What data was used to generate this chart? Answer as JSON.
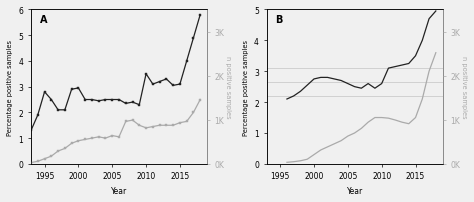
{
  "panel_A": {
    "label": "A",
    "years_black": [
      1993,
      1994,
      1995,
      1996,
      1997,
      1998,
      1999,
      2000,
      2001,
      2002,
      2003,
      2004,
      2005,
      2006,
      2007,
      2008,
      2009,
      2010,
      2011,
      2012,
      2013,
      2014,
      2015,
      2016,
      2017,
      2018
    ],
    "vals_black": [
      1.3,
      1.9,
      2.8,
      2.5,
      2.1,
      2.1,
      2.9,
      2.95,
      2.5,
      2.5,
      2.45,
      2.5,
      2.5,
      2.5,
      2.35,
      2.4,
      2.3,
      3.5,
      3.1,
      3.2,
      3.3,
      3.05,
      3.1,
      4.0,
      4.9,
      5.8
    ],
    "years_gray": [
      1993,
      1994,
      1995,
      1996,
      1997,
      1998,
      1999,
      2000,
      2001,
      2002,
      2003,
      2004,
      2005,
      2006,
      2007,
      2008,
      2009,
      2010,
      2011,
      2012,
      2013,
      2014,
      2015,
      2016,
      2017,
      2018
    ],
    "vals_gray_pct": [
      0.05,
      0.1,
      0.2,
      0.3,
      0.5,
      0.6,
      0.8,
      0.9,
      0.95,
      1.0,
      1.05,
      1.0,
      1.1,
      1.05,
      1.65,
      1.7,
      1.5,
      1.4,
      1.45,
      1.5,
      1.5,
      1.5,
      1.6,
      1.65,
      2.0,
      2.5
    ],
    "ylim_left": [
      0,
      6
    ],
    "ylim_right": [
      0,
      3500
    ],
    "yticks_left": [
      0,
      1,
      2,
      3,
      4,
      5,
      6
    ],
    "yticks_right": [
      0,
      1000,
      2000,
      3000
    ],
    "yticklabels_right": [
      "0K",
      "1K",
      "2K",
      "3K"
    ],
    "xlabel": "Year",
    "ylabel_left": "Percentage positive samples",
    "ylabel_right": "n positive samples",
    "hlines": [],
    "xlim": [
      1993,
      2019
    ],
    "xticks": [
      1995,
      2000,
      2005,
      2010,
      2015
    ]
  },
  "panel_B": {
    "label": "B",
    "years_black": [
      1996,
      1997,
      1998,
      1999,
      2000,
      2001,
      2002,
      2003,
      2004,
      2005,
      2006,
      2007,
      2008,
      2009,
      2010,
      2011,
      2012,
      2013,
      2014,
      2015,
      2016,
      2017,
      2018
    ],
    "vals_black": [
      2.1,
      2.2,
      2.35,
      2.55,
      2.75,
      2.8,
      2.8,
      2.75,
      2.7,
      2.6,
      2.5,
      2.45,
      2.6,
      2.45,
      2.6,
      3.1,
      3.15,
      3.2,
      3.25,
      3.5,
      4.0,
      4.7,
      4.95
    ],
    "years_gray": [
      1996,
      1997,
      1998,
      1999,
      2000,
      2001,
      2002,
      2003,
      2004,
      2005,
      2006,
      2007,
      2008,
      2009,
      2010,
      2011,
      2012,
      2013,
      2014,
      2015,
      2016,
      2017,
      2018
    ],
    "vals_gray_pct": [
      0.05,
      0.07,
      0.1,
      0.15,
      0.3,
      0.45,
      0.55,
      0.65,
      0.75,
      0.9,
      1.0,
      1.15,
      1.35,
      1.5,
      1.5,
      1.48,
      1.42,
      1.35,
      1.3,
      1.5,
      2.1,
      3.0,
      3.6
    ],
    "ylim_left": [
      0,
      5
    ],
    "ylim_right": [
      0,
      3500
    ],
    "yticks_left": [
      0,
      1,
      2,
      3,
      4,
      5
    ],
    "yticks_right": [
      0,
      1000,
      2000,
      3000
    ],
    "yticklabels_right": [
      "0K",
      "1K",
      "2K",
      "3K"
    ],
    "xlabel": "Year",
    "ylabel_left": "Percentage positive samples",
    "ylabel_right": "n positive samples",
    "hlines": [
      2.2,
      2.65,
      3.1
    ],
    "xlim": [
      1993,
      2019
    ],
    "xticks": [
      1995,
      2000,
      2005,
      2010,
      2015
    ]
  },
  "black_color": "#222222",
  "gray_color": "#aaaaaa",
  "bg_color": "#f0f0f0",
  "marker_size_A": 2.0,
  "marker_size_B": 0,
  "linewidth_black": 0.9,
  "linewidth_gray": 0.9,
  "fontsize_tick": 5.5,
  "fontsize_label": 4.8,
  "fontsize_panel": 7.0
}
